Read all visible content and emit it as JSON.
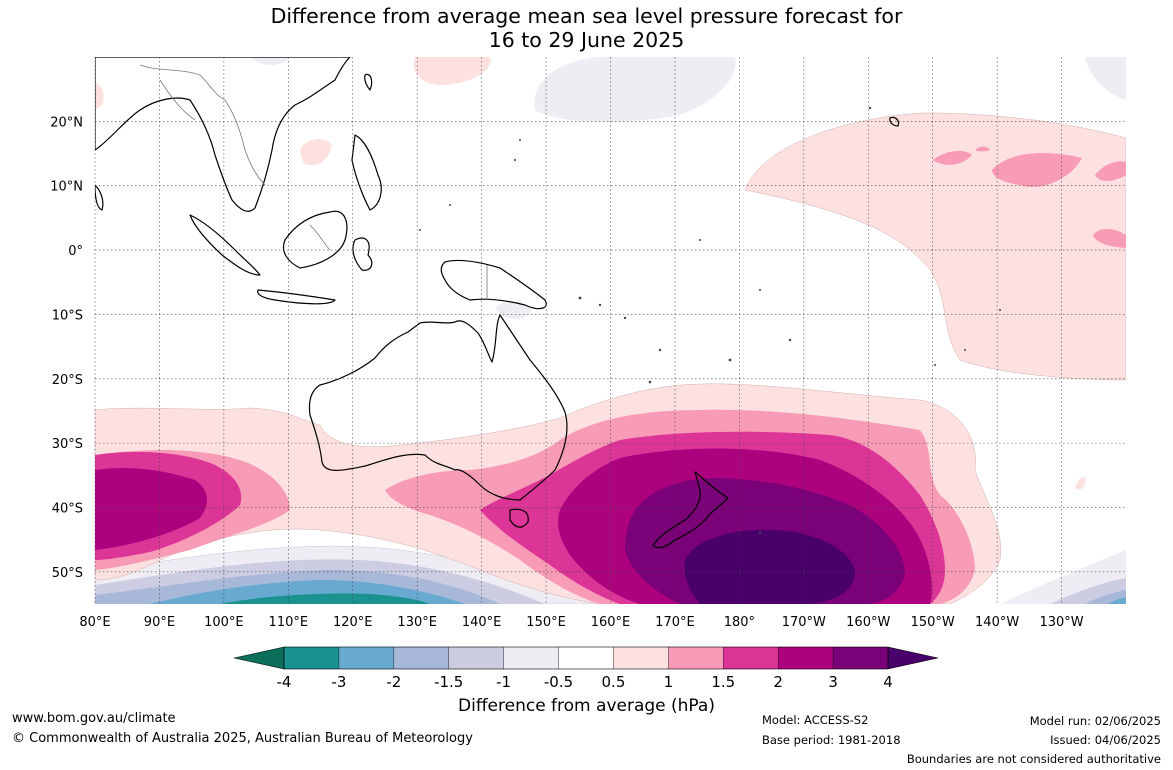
{
  "title": {
    "line1": "Difference from average mean sea level pressure forecast for",
    "line2": "16 to 29 June 2025"
  },
  "map": {
    "lon_labels": [
      "80°E",
      "90°E",
      "100°E",
      "110°E",
      "120°E",
      "130°E",
      "140°E",
      "150°E",
      "160°E",
      "170°E",
      "180°",
      "170°W",
      "160°W",
      "150°W",
      "140°W",
      "130°W"
    ],
    "lat_labels": [
      "20°N",
      "10°N",
      "0°",
      "10°S",
      "20°S",
      "30°S",
      "40°S",
      "50°S"
    ],
    "lon_range": [
      80,
      240
    ],
    "lat_range": [
      -55,
      30
    ],
    "grid": "dotted"
  },
  "colorbar": {
    "title": "Difference from average (hPa)",
    "ticks": [
      "-4",
      "-3",
      "-2",
      "-1.5",
      "-1",
      "-0.5",
      "0.5",
      "1",
      "1.5",
      "2",
      "3",
      "4"
    ],
    "colors": [
      "#0b6e5a",
      "#1a9290",
      "#68a9d0",
      "#a7b8d8",
      "#cccde3",
      "#f0ecf3",
      "#ffffff",
      "#fde0e0",
      "#f89bb6",
      "#dd3497",
      "#ae017e",
      "#7a0177",
      "#49006a"
    ]
  },
  "footer": {
    "url": "www.bom.gov.au/climate",
    "copyright": "© Commonwealth of Australia 2025, Australian Bureau of Meteorology",
    "model": "Model: ACCESS-S2",
    "base_period": "Base period: 1981-2018",
    "model_run": "Model run: 02/06/2025",
    "issued": "Issued: 04/06/2025",
    "disclaimer": "Boundaries are not considered authoritative"
  }
}
